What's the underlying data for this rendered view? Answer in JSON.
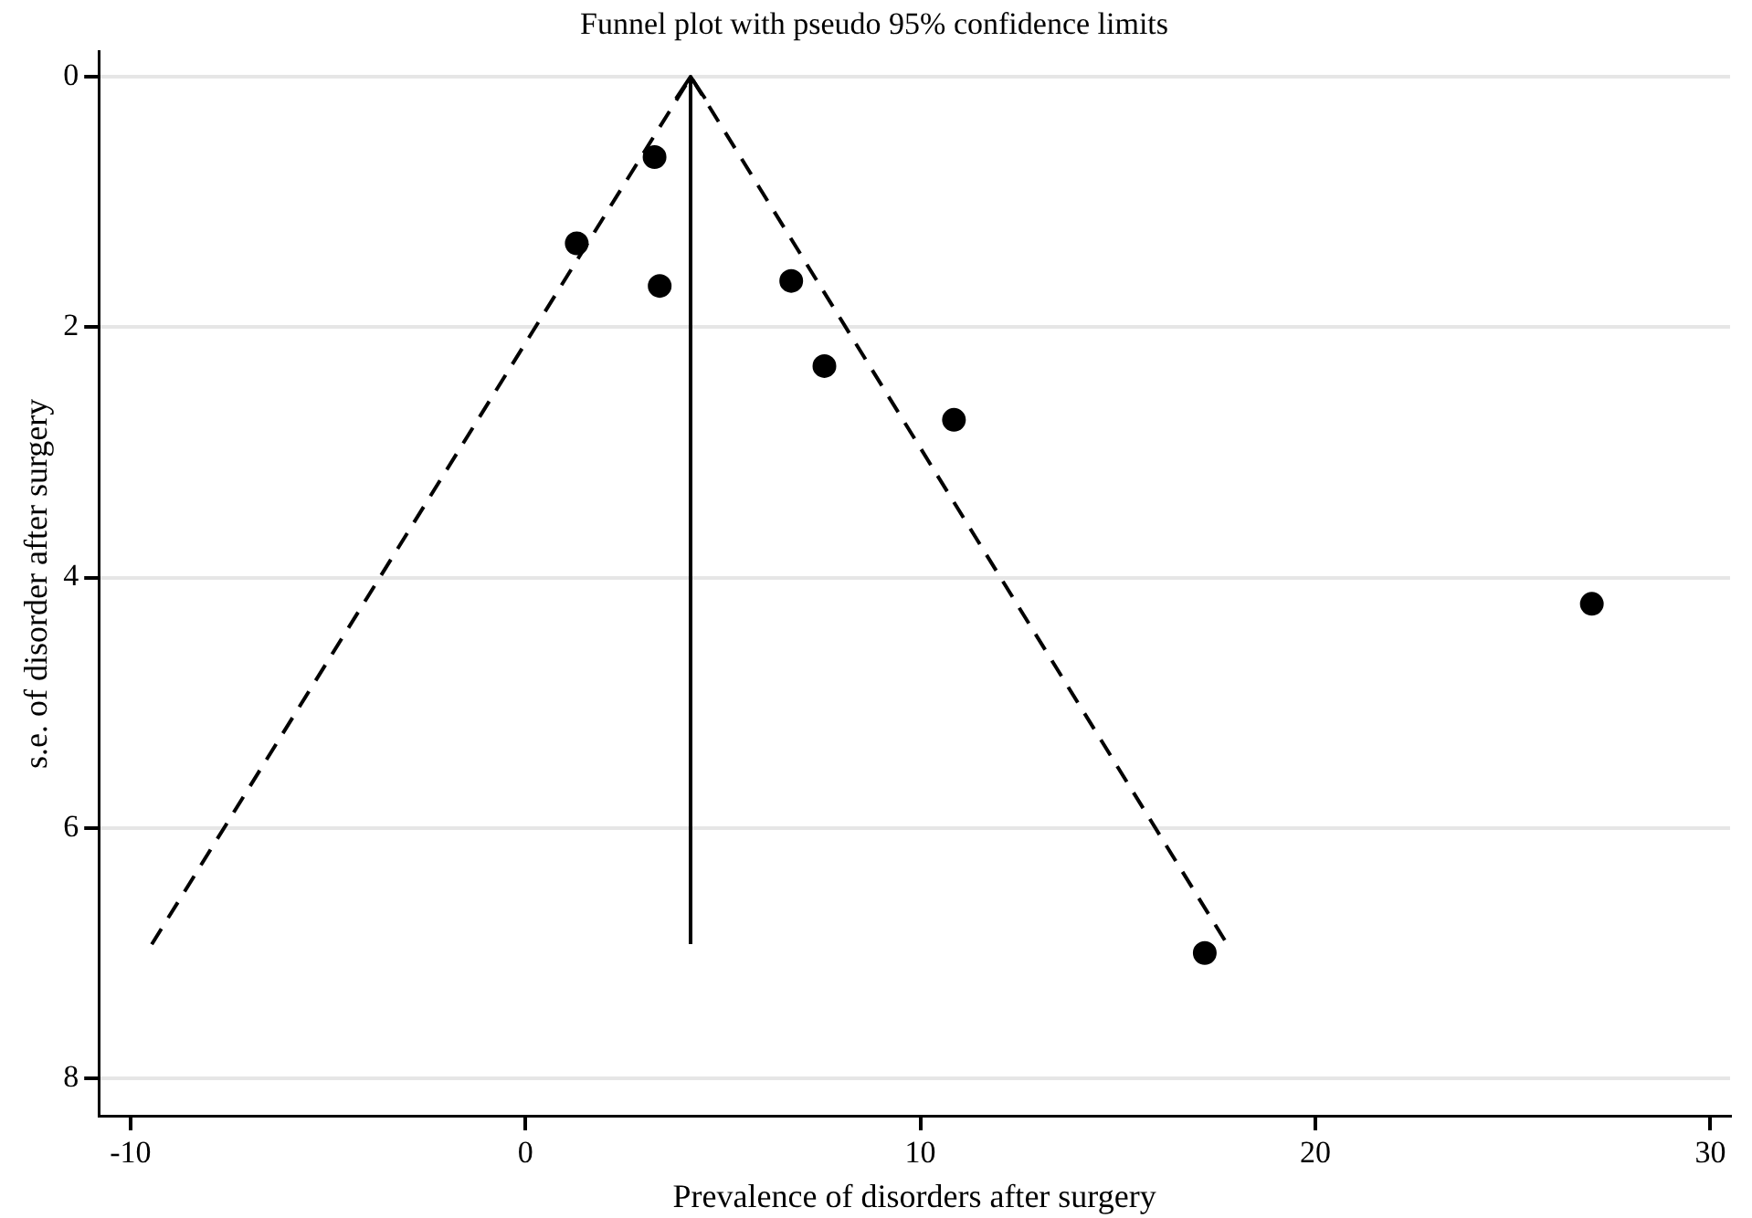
{
  "chart_data": {
    "type": "scatter",
    "title": "Funnel plot with pseudo 95% confidence limits",
    "xlabel": "Prevalence of disorders after surgery",
    "ylabel": "s.e. of disorder after surgery",
    "xlim": [
      -10.8,
      30.5
    ],
    "xticks": [
      -10,
      0,
      10,
      20,
      30
    ],
    "ylim": [
      8.3,
      -0.2
    ],
    "yticks": [
      0,
      2,
      4,
      6,
      8
    ],
    "grid": "y",
    "legend": false,
    "marker": "circle",
    "series": [
      {
        "color": "#000000",
        "x": [
          3.27,
          1.3,
          3.4,
          6.73,
          7.57,
          10.85,
          27.0,
          17.2
        ],
        "values": [
          0.64,
          1.33,
          1.67,
          1.63,
          2.31,
          2.74,
          4.21,
          7.0
        ]
      },
      {
        "type": "line",
        "color": "#000000",
        "marker": "none",
        "line_style": "dashed",
        "x": [
          -9.46,
          4.19,
          17.77
        ],
        "values": [
          6.93,
          0,
          6.93
        ]
      }
    ],
    "ref_lines": [
      {
        "axis": "x",
        "value": 4.19,
        "color": "#000000"
      }
    ]
  }
}
